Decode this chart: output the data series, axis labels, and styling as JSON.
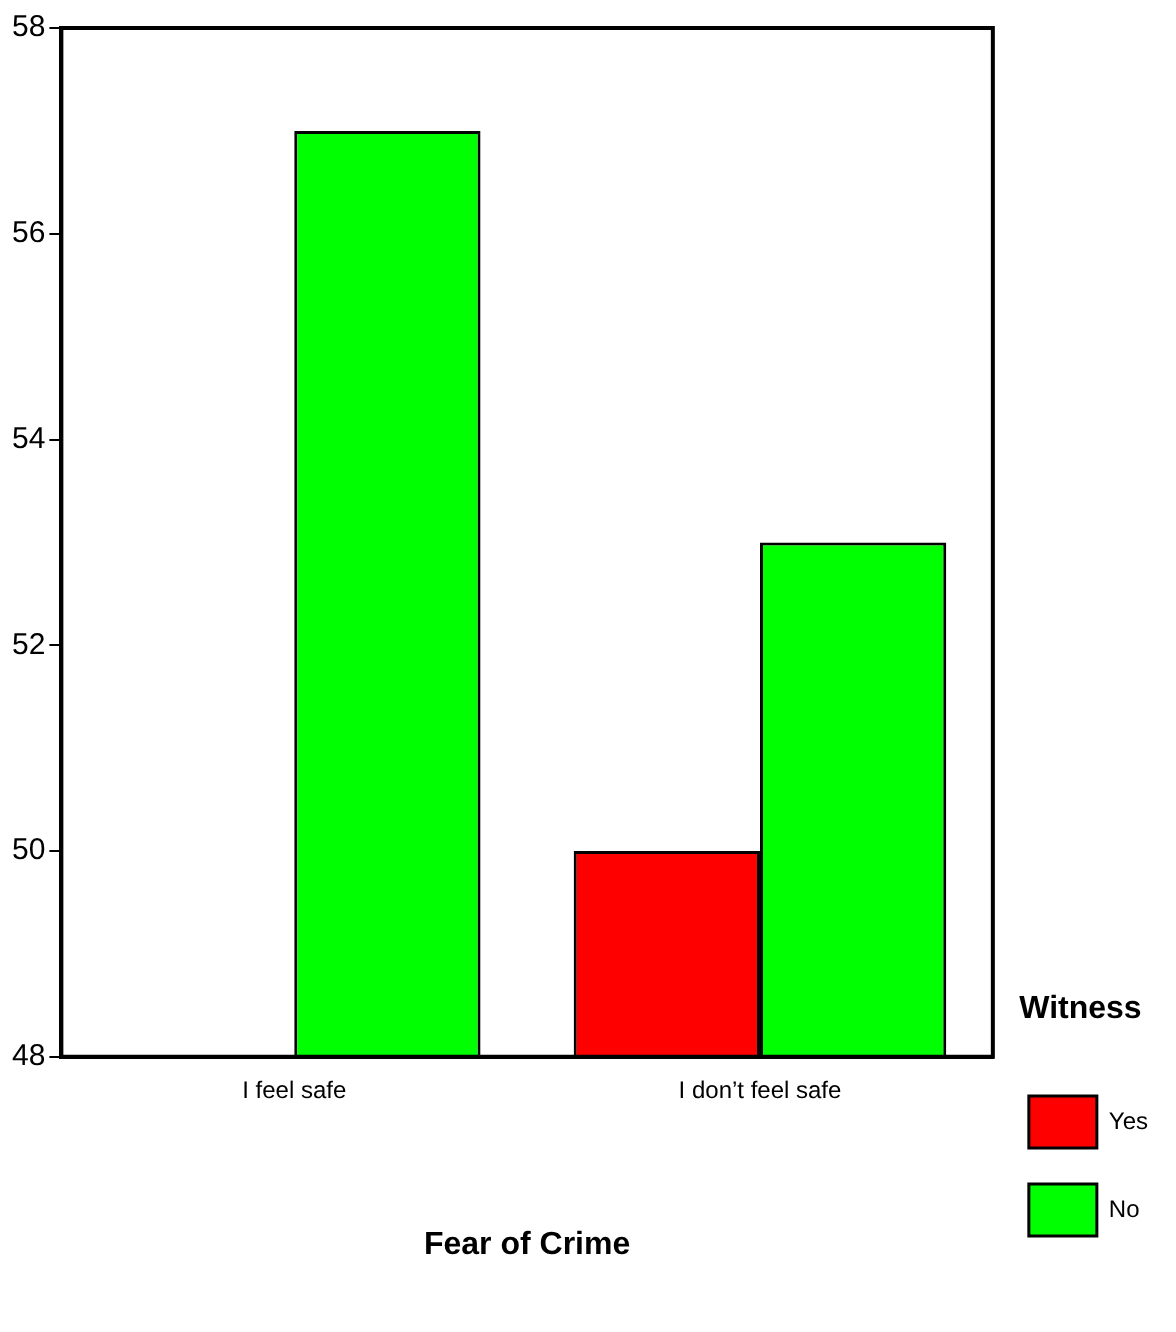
{
  "chart_data": {
    "type": "bar",
    "xlabel": "Fear of Crime",
    "legend_title": "Witness",
    "categories": [
      "I feel safe",
      "I don’t feel safe"
    ],
    "series": [
      {
        "name": "Yes",
        "color": "#ff0000",
        "values": [
          null,
          50
        ]
      },
      {
        "name": "No",
        "color": "#00ff00",
        "values": [
          57,
          53
        ]
      }
    ],
    "ylim": [
      48,
      58
    ],
    "yticks": [
      48,
      50,
      52,
      54,
      56,
      58
    ],
    "grid": false,
    "legend": "right"
  }
}
